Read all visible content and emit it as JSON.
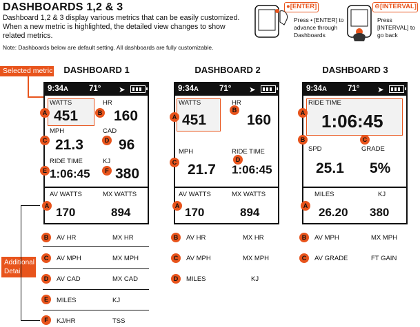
{
  "header": {
    "title": "DASHBOARDS 1,2 & 3",
    "intro": "Dashboard 1,2 & 3 display various metrics that can be easily customized. When a new metric is highlighted, the detailed view changes to show related metrics.",
    "note": "Note: Dashboards below are default setting. All dashboards are fully customizable."
  },
  "buttons": {
    "enter_tag": "●[ENTER]",
    "interval_tag": "⊖[INTERVAL]",
    "enter_help": "Press • [ENTER] to advance through Dashboards",
    "interval_help": "Press [INTERVAL] to go back"
  },
  "callouts": {
    "selected_metric": "Selected metric",
    "additional_detail": "Additional Detail"
  },
  "status": {
    "time": "9:34",
    "time_suffix": "A",
    "temp": "71°"
  },
  "dashboards": [
    {
      "title": "DASHBOARD 1",
      "fields": [
        {
          "label": "WATTS",
          "value": "451"
        },
        {
          "label": "HR",
          "value": "160"
        },
        {
          "label": "MPH",
          "value": "21.3"
        },
        {
          "label": "CAD",
          "value": "96"
        },
        {
          "label": "RIDE TIME",
          "value": "1:06:45"
        },
        {
          "label": "KJ",
          "value": "380"
        }
      ],
      "detail_labels": [
        "AV WATTS",
        "MX WATTS"
      ],
      "detail_values": [
        "170",
        "894"
      ],
      "rows": [
        {
          "badge": "B",
          "left": "AV HR",
          "right": "MX HR"
        },
        {
          "badge": "C",
          "left": "AV MPH",
          "right": "MX MPH"
        },
        {
          "badge": "D",
          "left": "AV CAD",
          "right": "MX CAD"
        },
        {
          "badge": "E",
          "left": "MILES",
          "right": "KJ"
        },
        {
          "badge": "F",
          "left": "KJ/HR",
          "right": "TSS"
        }
      ]
    },
    {
      "title": "DASHBOARD 2",
      "fields": [
        {
          "label": "WATTS",
          "value": "451"
        },
        {
          "label": "HR",
          "value": "160"
        },
        {
          "label": "MPH",
          "value": "21.7"
        },
        {
          "label": "RIDE TIME",
          "value": "1:06:45"
        }
      ],
      "detail_labels": [
        "AV WATTS",
        "MX WATTS"
      ],
      "detail_values": [
        "170",
        "894"
      ],
      "rows": [
        {
          "badge": "B",
          "left": "AV HR",
          "right": "MX HR"
        },
        {
          "badge": "C",
          "left": "AV MPH",
          "right": "MX MPH"
        },
        {
          "badge": "D",
          "left": "MILES",
          "right": "KJ"
        }
      ]
    },
    {
      "title": "DASHBOARD 3",
      "fields": [
        {
          "label": "RIDE TIME",
          "value": "1:06:45"
        },
        {
          "label": "SPD",
          "value": "25.1"
        },
        {
          "label": "GRADE",
          "value": "5%"
        }
      ],
      "detail_labels": [
        "MILES",
        "KJ"
      ],
      "detail_values": [
        "26.20",
        "380"
      ],
      "rows": [
        {
          "badge": "B",
          "left": "AV MPH",
          "right": "MX MPH"
        },
        {
          "badge": "C",
          "left": "AV GRADE",
          "right": "FT GAIN"
        }
      ]
    }
  ],
  "badges": [
    "A",
    "B",
    "C",
    "D",
    "E",
    "F"
  ],
  "colors": {
    "accent": "#e8541c",
    "ink": "#111111"
  }
}
